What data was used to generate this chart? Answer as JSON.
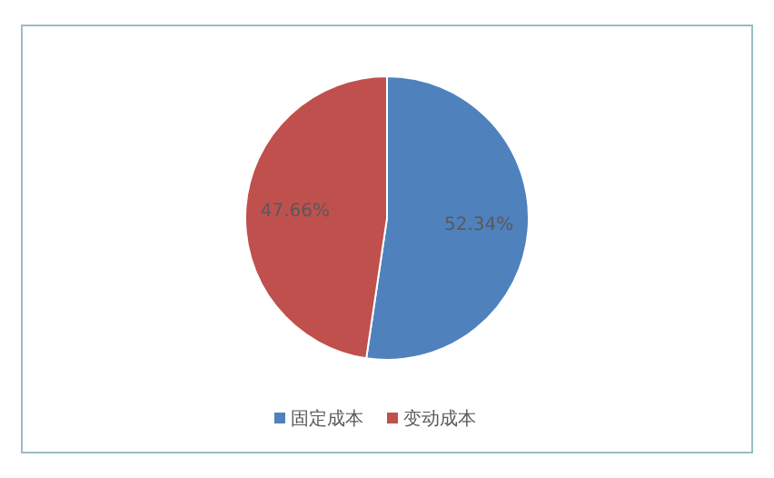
{
  "chart_data": {
    "type": "pie",
    "categories": [
      "固定成本",
      "变动成本"
    ],
    "values": [
      52.34,
      47.66
    ],
    "colors": [
      "#4f81bd",
      "#c0504d"
    ],
    "value_labels": [
      "52.34%",
      "47.66%"
    ],
    "legend": "bottom"
  }
}
